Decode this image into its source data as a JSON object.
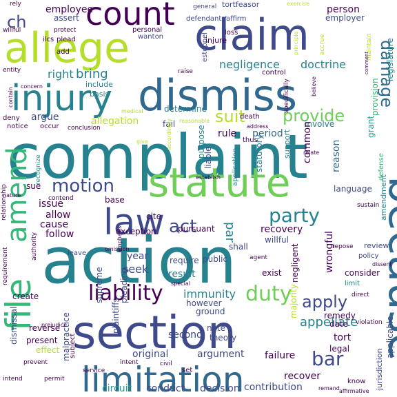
{
  "colors": {
    "background": "#ffffff",
    "purple": "#440154",
    "indigo": "#3e4a89",
    "blue": "#31688e",
    "teal": "#26828e",
    "green_teal": "#1f9e89",
    "green": "#35b779",
    "light_green": "#6ece58",
    "lime": "#b5de2b",
    "yellow": "#fde725"
  },
  "words": [
    {
      "text": "complaint",
      "color": "#26828e"
    },
    {
      "text": "action",
      "color": "#26828e"
    },
    {
      "text": "section",
      "color": "#3e4a89"
    },
    {
      "text": "dismiss",
      "color": "#31688e"
    },
    {
      "text": "allege",
      "color": "#b5de2b"
    },
    {
      "text": "claim",
      "color": "#3e4a89"
    },
    {
      "text": "statute",
      "color": "#6ece58"
    },
    {
      "text": "because",
      "color": "#31688e"
    },
    {
      "text": "limitation",
      "color": "#31688e"
    },
    {
      "text": "injury",
      "color": "#26828e"
    },
    {
      "text": "count",
      "color": "#440154"
    },
    {
      "text": "law",
      "color": "#3e4a89"
    },
    {
      "text": "amend",
      "color": "#35b779"
    },
    {
      "text": "file",
      "color": "#35b779"
    },
    {
      "text": "liability",
      "color": "#440154"
    },
    {
      "text": "damage",
      "color": "#31688e"
    },
    {
      "text": "act",
      "color": "#3e4a89"
    },
    {
      "text": "duty",
      "color": "#6ece58"
    },
    {
      "text": "party",
      "color": "#26828e"
    },
    {
      "text": "motion",
      "color": "#3e4a89"
    },
    {
      "text": "suit",
      "color": "#b5de2b"
    },
    {
      "text": "provide",
      "color": "#6ece58"
    },
    {
      "text": "bar",
      "color": "#3e4a89"
    },
    {
      "text": "apply",
      "color": "#3e4a89"
    },
    {
      "text": "ch",
      "color": "#3e4a89"
    },
    {
      "text": "bring",
      "color": "#26828e"
    },
    {
      "text": "negligence",
      "color": "#26828e"
    },
    {
      "text": "doctrine",
      "color": "#26828e"
    },
    {
      "text": "right",
      "color": "#26828e"
    },
    {
      "text": "par",
      "color": "#26828e"
    },
    {
      "text": "immunity",
      "color": "#26828e"
    },
    {
      "text": "appellate",
      "color": "#26828e"
    },
    {
      "text": "employee",
      "color": "#440154"
    },
    {
      "text": "person",
      "color": "#440154"
    },
    {
      "text": "rule",
      "color": "#440154"
    },
    {
      "text": "period",
      "color": "#31688e"
    },
    {
      "text": "employer",
      "color": "#3e4a89"
    },
    {
      "text": "assert",
      "color": "#3e4a89"
    },
    {
      "text": "argue",
      "color": "#3e4a89"
    },
    {
      "text": "allegation",
      "color": "#b5de2b"
    },
    {
      "text": "determine",
      "color": "#26828e"
    },
    {
      "text": "fail",
      "color": "#3e4a89"
    },
    {
      "text": "involve",
      "color": "#26828e"
    },
    {
      "text": "common",
      "color": "#440154"
    },
    {
      "text": "reason",
      "color": "#31688e"
    },
    {
      "text": "language",
      "color": "#3e4a89"
    },
    {
      "text": "sue",
      "color": "#440154"
    },
    {
      "text": "issue",
      "color": "#440154"
    },
    {
      "text": "allow",
      "color": "#440154"
    },
    {
      "text": "cause",
      "color": "#440154"
    },
    {
      "text": "follow",
      "color": "#440154"
    },
    {
      "text": "base",
      "color": "#440154"
    },
    {
      "text": "cite",
      "color": "#440154"
    },
    {
      "text": "pursuant",
      "color": "#440154"
    },
    {
      "text": "exception",
      "color": "#440154"
    },
    {
      "text": "recovery",
      "color": "#440154"
    },
    {
      "text": "wrongful",
      "color": "#440154"
    },
    {
      "text": "year",
      "color": "#3e4a89"
    },
    {
      "text": "seek",
      "color": "#3e4a89"
    },
    {
      "text": "public",
      "color": "#3e4a89"
    },
    {
      "text": "require",
      "color": "#3e4a89"
    },
    {
      "text": "shall",
      "color": "#3e4a89"
    },
    {
      "text": "result",
      "color": "#26828e"
    },
    {
      "text": "exist",
      "color": "#440154"
    },
    {
      "text": "consider",
      "color": "#440154"
    },
    {
      "text": "negligent",
      "color": "#440154"
    },
    {
      "text": "legal",
      "color": "#440154"
    },
    {
      "text": "tort",
      "color": "#440154"
    },
    {
      "text": "remedy",
      "color": "#440154"
    },
    {
      "text": "date",
      "color": "#440154"
    },
    {
      "text": "recover",
      "color": "#440154"
    },
    {
      "text": "failure",
      "color": "#440154"
    },
    {
      "text": "contribution",
      "color": "#3e4a89"
    },
    {
      "text": "decision",
      "color": "#3e4a89"
    },
    {
      "text": "argument",
      "color": "#3e4a89"
    },
    {
      "text": "theory",
      "color": "#3e4a89"
    },
    {
      "text": "note",
      "color": "#3e4a89"
    },
    {
      "text": "second",
      "color": "#3e4a89"
    },
    {
      "text": "conduct",
      "color": "#3e4a89"
    },
    {
      "text": "circuit",
      "color": "#1f9e89"
    },
    {
      "text": "original",
      "color": "#3e4a89"
    },
    {
      "text": "supreme",
      "color": "#3e4a89"
    },
    {
      "text": "plaintiffs",
      "color": "#3e4a89"
    },
    {
      "text": "pleading",
      "color": "#3e4a89"
    },
    {
      "text": "malpractice",
      "color": "#3e4a89"
    },
    {
      "text": "dismissal",
      "color": "#3e4a89"
    },
    {
      "text": "reverse",
      "color": "#440154"
    },
    {
      "text": "present",
      "color": "#440154"
    },
    {
      "text": "effect",
      "color": "#b5de2b"
    },
    {
      "text": "create",
      "color": "#440154"
    },
    {
      "text": "purpose",
      "color": "#26828e"
    },
    {
      "text": "liable",
      "color": "#3e4a89"
    },
    {
      "text": "statutory",
      "color": "#26828e"
    },
    {
      "text": "ground",
      "color": "#3e4a89"
    },
    {
      "text": "however",
      "color": "#3e4a89"
    },
    {
      "text": "majority",
      "color": "#b5de2b"
    },
    {
      "text": "grant",
      "color": "#1f9e89"
    },
    {
      "text": "provision",
      "color": "#35b779"
    },
    {
      "text": "legislature",
      "color": "#26828e"
    },
    {
      "text": "tortfeasor",
      "color": "#3e4a89"
    },
    {
      "text": "general",
      "color": "#3e4a89"
    },
    {
      "text": "wanton",
      "color": "#3e4a89"
    },
    {
      "text": "defendants'",
      "color": "#3e4a89"
    },
    {
      "text": "affirm",
      "color": "#3e4a89"
    },
    {
      "text": "estoppel",
      "color": "#3e4a89"
    },
    {
      "text": "plead",
      "color": "#440154"
    },
    {
      "text": "add",
      "color": "#440154"
    },
    {
      "text": "protect",
      "color": "#440154"
    },
    {
      "text": "willful",
      "color": "#440154"
    },
    {
      "text": "entity",
      "color": "#440154"
    },
    {
      "text": "include",
      "color": "#26828e"
    },
    {
      "text": "basis",
      "color": "#26828e"
    },
    {
      "text": "injure",
      "color": "#440154"
    },
    {
      "text": "loss",
      "color": "#440154"
    },
    {
      "text": "personal",
      "color": "#440154"
    },
    {
      "text": "deny",
      "color": "#440154"
    },
    {
      "text": "notice",
      "color": "#440154"
    },
    {
      "text": "occur",
      "color": "#440154"
    },
    {
      "text": "rely",
      "color": "#440154"
    },
    {
      "text": "ilcs",
      "color": "#440154"
    },
    {
      "text": "death",
      "color": "#440154"
    },
    {
      "text": "amendment",
      "color": "#26828e"
    },
    {
      "text": "support",
      "color": "#26828e"
    },
    {
      "text": "review",
      "color": "#3e4a89"
    },
    {
      "text": "policy",
      "color": "#3e4a89"
    },
    {
      "text": "limit",
      "color": "#26828e"
    },
    {
      "text": "defense",
      "color": "#35b779"
    },
    {
      "text": "jurisdiction",
      "color": "#3e4a89"
    },
    {
      "text": "applicable",
      "color": "#3e4a89"
    },
    {
      "text": "direct",
      "color": "#440154"
    },
    {
      "text": "violation",
      "color": "#440154"
    },
    {
      "text": "know",
      "color": "#440154"
    },
    {
      "text": "relationship",
      "color": "#440154"
    },
    {
      "text": "recognize",
      "color": "#1f9e89"
    },
    {
      "text": "contend",
      "color": "#440154"
    },
    {
      "text": "leave",
      "color": "#3e4a89"
    },
    {
      "text": "prevent",
      "color": "#440154"
    },
    {
      "text": "intend",
      "color": "#440154"
    },
    {
      "text": "permit",
      "color": "#440154"
    },
    {
      "text": "set",
      "color": "#440154"
    },
    {
      "text": "intent",
      "color": "#440154"
    },
    {
      "text": "civil",
      "color": "#440154"
    },
    {
      "text": "service",
      "color": "#440154"
    },
    {
      "text": "subject",
      "color": "#440154"
    },
    {
      "text": "requirement",
      "color": "#440154"
    },
    {
      "text": "authority",
      "color": "#440154"
    },
    {
      "text": "concern",
      "color": "#440154"
    },
    {
      "text": "conclusion",
      "color": "#440154"
    },
    {
      "text": "control",
      "color": "#440154"
    },
    {
      "text": "raise",
      "color": "#440154"
    },
    {
      "text": "address",
      "color": "#440154"
    },
    {
      "text": "maintain",
      "color": "#b5de2b"
    },
    {
      "text": "principle",
      "color": "#b5de2b"
    },
    {
      "text": "accrue",
      "color": "#b5de2b"
    },
    {
      "text": "exercise",
      "color": "#b5de2b"
    },
    {
      "text": "specifically",
      "color": "#440154"
    },
    {
      "text": "believe",
      "color": "#440154"
    },
    {
      "text": "contain",
      "color": "#440154"
    },
    {
      "text": "application",
      "color": "#26828e"
    },
    {
      "text": "thus",
      "color": "#440154"
    },
    {
      "text": "agent",
      "color": "#440154"
    },
    {
      "text": "repose",
      "color": "#440154"
    },
    {
      "text": "willful",
      "color": "#3e4a89"
    },
    {
      "text": "sustain",
      "color": "#440154"
    },
    {
      "text": "omission",
      "color": "#440154"
    },
    {
      "text": "reasonable",
      "color": "#b5de2b"
    },
    {
      "text": "medical",
      "color": "#b5de2b"
    },
    {
      "text": "accordingly",
      "color": "#b5de2b"
    },
    {
      "text": "give",
      "color": "#b5de2b"
    },
    {
      "text": "nature",
      "color": "#440154"
    },
    {
      "text": "prejudice",
      "color": "#440154"
    },
    {
      "text": "special",
      "color": "#440154"
    },
    {
      "text": "emphasis",
      "color": "#440154"
    },
    {
      "text": "dissent",
      "color": "#440154"
    },
    {
      "text": "establish",
      "color": "#440154"
    },
    {
      "text": "comment",
      "color": "#440154"
    },
    {
      "text": "relate",
      "color": "#440154"
    },
    {
      "text": "remand",
      "color": "#440154"
    },
    {
      "text": "affirmative",
      "color": "#440154"
    }
  ]
}
